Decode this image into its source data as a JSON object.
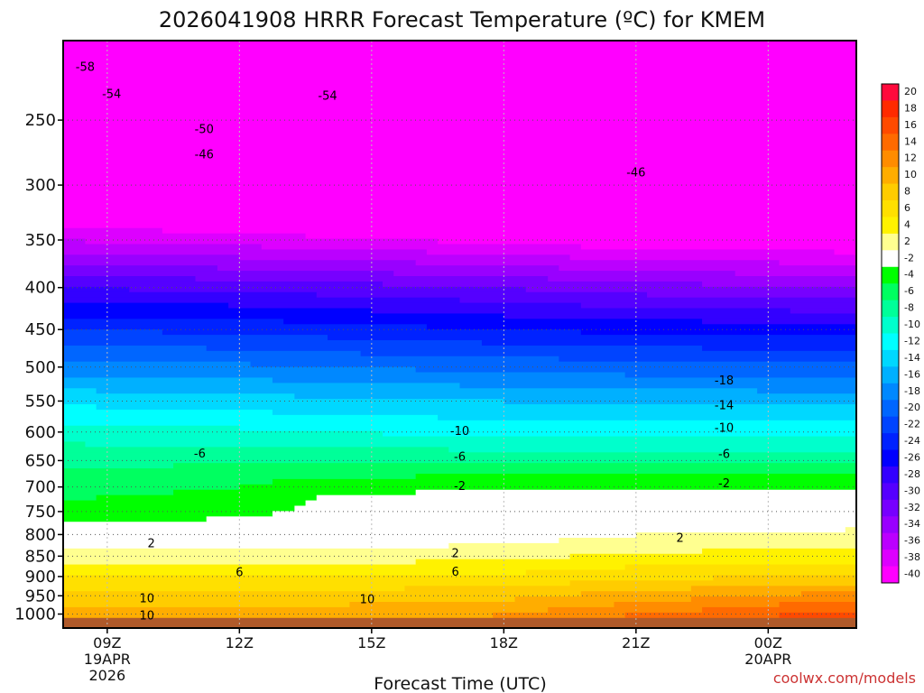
{
  "chart_data": {
    "type": "heatmap",
    "title": "2026041908 HRRR Forecast Temperature (ºC) for KMEM",
    "xlabel": "Forecast Time (UTC)",
    "credit": "coolwx.com/models",
    "x_range_hours_utc": [
      8,
      26
    ],
    "y_range_hpa": [
      1040,
      200
    ],
    "y_scale": "log-pressure (inverted)",
    "y_ticks": [
      "250",
      "300",
      "350",
      "400",
      "450",
      "500",
      "550",
      "600",
      "650",
      "700",
      "750",
      "800",
      "850",
      "900",
      "950",
      "1000"
    ],
    "x_ticks": [
      {
        "hour": 9,
        "line1": "09Z",
        "line2": "19APR",
        "line3": "2026"
      },
      {
        "hour": 12,
        "line1": "12Z",
        "line2": "",
        "line3": ""
      },
      {
        "hour": 15,
        "line1": "15Z",
        "line2": "",
        "line3": ""
      },
      {
        "hour": 18,
        "line1": "18Z",
        "line2": "",
        "line3": ""
      },
      {
        "hour": 21,
        "line1": "21Z",
        "line2": "",
        "line3": ""
      },
      {
        "hour": 24,
        "line1": "00Z",
        "line2": "20APR",
        "line3": ""
      }
    ],
    "colorbar_labels": [
      "20",
      "18",
      "16",
      "14",
      "12",
      "10",
      "8",
      "6",
      "4",
      "2",
      "-2",
      "-4",
      "-6",
      "-8",
      "-10",
      "-12",
      "-14",
      "-16",
      "-18",
      "-20",
      "-22",
      "-24",
      "-26",
      "-28",
      "-30",
      "-32",
      "-34",
      "-36",
      "-38",
      "-40"
    ],
    "colorbar_colors": [
      "#ff0a3c",
      "#ff2a00",
      "#ff4a00",
      "#ff6a00",
      "#ff8c00",
      "#ffad00",
      "#ffcc00",
      "#ffe000",
      "#fff200",
      "#ffff90",
      "#ffffff",
      "#00ff00",
      "#00ff60",
      "#00ff99",
      "#00ffcc",
      "#00ffff",
      "#00d8ff",
      "#00b0ff",
      "#0088ff",
      "#0066ff",
      "#0044ff",
      "#0022ff",
      "#0000ff",
      "#3300ff",
      "#5500ff",
      "#7700ff",
      "#9900ff",
      "#bb00ff",
      "#dd00ff",
      "#ff00ff"
    ],
    "temperature_profiles": [
      {
        "hour": 8,
        "levels_hpa": [
          1040,
          1000,
          950,
          900,
          850,
          800,
          750,
          700,
          650,
          600,
          550,
          500,
          450,
          400,
          350,
          300,
          250,
          200
        ],
        "temps_c": [
          13,
          11,
          9,
          6,
          3,
          0.5,
          -3.5,
          -4.5,
          -6.5,
          -9,
          -12.5,
          -17,
          -22,
          -28,
          -36,
          -44,
          -52,
          -58
        ]
      },
      {
        "hour": 12,
        "levels_hpa": [
          1040,
          1000,
          950,
          900,
          850,
          800,
          750,
          700,
          650,
          600,
          550,
          500,
          450,
          400,
          350,
          300,
          250,
          200
        ],
        "temps_c": [
          13,
          11,
          9,
          6,
          3,
          0.5,
          -3,
          -4,
          -6.3,
          -9.5,
          -13,
          -17.5,
          -22.5,
          -28.5,
          -37,
          -45,
          -52,
          -57
        ]
      },
      {
        "hour": 14,
        "levels_hpa": [
          1040,
          1000,
          950,
          900,
          850,
          800,
          750,
          700,
          650,
          600,
          550,
          500,
          450,
          400,
          350,
          300,
          250,
          200
        ],
        "temps_c": [
          13,
          11,
          9,
          6,
          3,
          0,
          -1,
          -2.5,
          -6.3,
          -10,
          -13.5,
          -18,
          -23,
          -29,
          -37.5,
          -45.5,
          -53,
          -57
        ]
      },
      {
        "hour": 18,
        "levels_hpa": [
          1040,
          1000,
          950,
          900,
          850,
          800,
          750,
          700,
          650,
          600,
          550,
          500,
          450,
          400,
          350,
          300,
          250,
          200
        ],
        "temps_c": [
          14,
          12,
          9.5,
          6.5,
          3.5,
          1,
          -1,
          -2,
          -6.5,
          -10.5,
          -14,
          -18.5,
          -24,
          -30,
          -38.5,
          -46.5,
          -54,
          -56
        ]
      },
      {
        "hour": 21,
        "levels_hpa": [
          1040,
          1000,
          950,
          900,
          850,
          800,
          750,
          700,
          650,
          600,
          550,
          500,
          450,
          400,
          350,
          300,
          250,
          200
        ],
        "temps_c": [
          16,
          14,
          11,
          7.5,
          4.5,
          2,
          -0.5,
          -2,
          -6.5,
          -10.5,
          -14.5,
          -19,
          -24.5,
          -31,
          -39.5,
          -47,
          -55,
          -55
        ]
      },
      {
        "hour": 26,
        "levels_hpa": [
          1040,
          1000,
          950,
          900,
          850,
          800,
          750,
          700,
          650,
          600,
          550,
          500,
          450,
          400,
          350,
          300,
          250,
          200
        ],
        "temps_c": [
          19,
          17,
          13,
          8.5,
          5,
          2.5,
          0.5,
          -2,
          -6.5,
          -10.5,
          -14.5,
          -19.5,
          -25,
          -32,
          -40,
          -47.5,
          -55,
          -55
        ]
      }
    ],
    "contour_labels": [
      {
        "text": "-58",
        "hour": 8.5,
        "hpa": 215
      },
      {
        "text": "-54",
        "hour": 9.1,
        "hpa": 232
      },
      {
        "text": "-54",
        "hour": 14.0,
        "hpa": 233
      },
      {
        "text": "-50",
        "hour": 11.2,
        "hpa": 256
      },
      {
        "text": "-46",
        "hour": 11.2,
        "hpa": 275
      },
      {
        "text": "-46",
        "hour": 21.0,
        "hpa": 289
      },
      {
        "text": "-18",
        "hour": 23.0,
        "hpa": 518
      },
      {
        "text": "-14",
        "hour": 23.0,
        "hpa": 556
      },
      {
        "text": "-10",
        "hour": 17.0,
        "hpa": 597
      },
      {
        "text": "-10",
        "hour": 23.0,
        "hpa": 592
      },
      {
        "text": "-6",
        "hour": 11.1,
        "hpa": 636
      },
      {
        "text": "-6",
        "hour": 17.0,
        "hpa": 642
      },
      {
        "text": "-6",
        "hour": 23.0,
        "hpa": 637
      },
      {
        "text": "-2",
        "hour": 17.0,
        "hpa": 697
      },
      {
        "text": "-2",
        "hour": 23.0,
        "hpa": 692
      },
      {
        "text": "2",
        "hour": 10.0,
        "hpa": 819
      },
      {
        "text": "2",
        "hour": 16.9,
        "hpa": 842
      },
      {
        "text": "2",
        "hour": 22.0,
        "hpa": 806
      },
      {
        "text": "6",
        "hour": 12.0,
        "hpa": 888
      },
      {
        "text": "6",
        "hour": 16.9,
        "hpa": 887
      },
      {
        "text": "10",
        "hour": 9.9,
        "hpa": 956
      },
      {
        "text": "10",
        "hour": 14.9,
        "hpa": 958
      },
      {
        "text": "10",
        "hour": 9.9,
        "hpa": 1002
      }
    ]
  }
}
